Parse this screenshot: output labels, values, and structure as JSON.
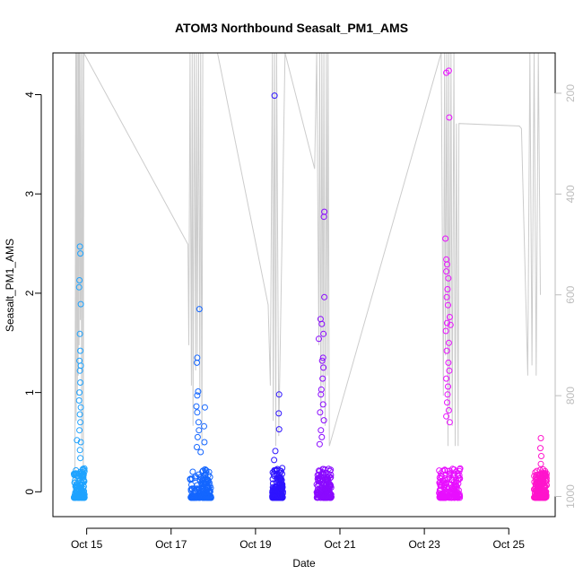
{
  "chart_data": {
    "type": "scatter",
    "title": "ATOM3 Northbound Seasalt_PM1_AMS",
    "xlabel": "Date",
    "ylabel": "Seasalt_PM1_AMS",
    "x_ticks": [
      "Oct 15",
      "Oct 17",
      "Oct 19",
      "Oct 21",
      "Oct 23",
      "Oct 25"
    ],
    "x_tick_days": [
      15,
      17,
      19,
      21,
      23,
      25
    ],
    "xlim_days": [
      14.2,
      26.1
    ],
    "y_ticks": [
      0,
      1,
      2,
      3,
      4
    ],
    "ylim": [
      -0.25,
      4.42
    ],
    "y_right_ticks": [
      200,
      400,
      600,
      800,
      1000
    ],
    "y_right_lim": [
      1040,
      120
    ],
    "y_right_reversed": true,
    "grid": false,
    "overlay_line_color": "#cccccc",
    "series": [
      {
        "color": "#1fa3ff",
        "day_range": [
          14.7,
          14.95
        ],
        "values": [
          [
            14.84,
            2.47
          ],
          [
            14.85,
            2.4
          ],
          [
            14.83,
            2.13
          ],
          [
            14.82,
            2.06
          ],
          [
            14.86,
            1.89
          ],
          [
            14.84,
            1.59
          ],
          [
            14.85,
            1.42
          ],
          [
            14.83,
            1.32
          ],
          [
            14.86,
            1.27
          ],
          [
            14.84,
            1.22
          ],
          [
            14.85,
            1.1
          ],
          [
            14.83,
            1.0
          ],
          [
            14.82,
            0.92
          ],
          [
            14.86,
            0.85
          ],
          [
            14.84,
            0.78
          ],
          [
            14.85,
            0.7
          ],
          [
            14.83,
            0.62
          ],
          [
            14.77,
            0.52
          ],
          [
            14.86,
            0.5
          ],
          [
            14.84,
            0.42
          ],
          [
            14.85,
            0.34
          ]
        ]
      },
      {
        "color": "#1466ff",
        "day_range": [
          17.45,
          17.95
        ],
        "values": [
          [
            17.67,
            1.84
          ],
          [
            17.62,
            1.35
          ],
          [
            17.61,
            1.3
          ],
          [
            17.64,
            1.01
          ],
          [
            17.62,
            0.97
          ],
          [
            17.6,
            0.86
          ],
          [
            17.8,
            0.85
          ],
          [
            17.62,
            0.8
          ],
          [
            17.65,
            0.7
          ],
          [
            17.78,
            0.66
          ],
          [
            17.66,
            0.62
          ],
          [
            17.63,
            0.55
          ],
          [
            17.79,
            0.5
          ],
          [
            17.61,
            0.45
          ],
          [
            17.7,
            0.4
          ]
        ]
      },
      {
        "color": "#2e14ff",
        "day_range": [
          19.4,
          19.65
        ],
        "values": [
          [
            19.45,
            3.99
          ],
          [
            19.56,
            0.98
          ],
          [
            19.55,
            0.79
          ],
          [
            19.56,
            0.63
          ],
          [
            19.47,
            0.41
          ],
          [
            19.44,
            0.32
          ],
          [
            19.5,
            0.18
          ]
        ]
      },
      {
        "color": "#8a0aff",
        "day_range": [
          20.45,
          20.8
        ],
        "values": [
          [
            20.63,
            2.82
          ],
          [
            20.62,
            2.77
          ],
          [
            20.63,
            1.96
          ],
          [
            20.54,
            1.74
          ],
          [
            20.57,
            1.69
          ],
          [
            20.61,
            1.59
          ],
          [
            20.5,
            1.54
          ],
          [
            20.58,
            1.32
          ],
          [
            20.6,
            1.35
          ],
          [
            20.61,
            1.25
          ],
          [
            20.59,
            1.14
          ],
          [
            20.56,
            1.03
          ],
          [
            20.55,
            0.98
          ],
          [
            20.6,
            0.88
          ],
          [
            20.53,
            0.8
          ],
          [
            20.62,
            0.72
          ],
          [
            20.55,
            0.62
          ],
          [
            20.57,
            0.55
          ],
          [
            20.52,
            0.48
          ]
        ]
      },
      {
        "color": "#e80fff",
        "day_range": [
          23.35,
          23.85
        ],
        "values": [
          [
            23.58,
            4.24
          ],
          [
            23.52,
            4.22
          ],
          [
            23.59,
            3.77
          ],
          [
            23.5,
            2.55
          ],
          [
            23.52,
            2.34
          ],
          [
            23.54,
            2.29
          ],
          [
            23.52,
            2.22
          ],
          [
            23.57,
            2.15
          ],
          [
            23.55,
            2.04
          ],
          [
            23.53,
            1.96
          ],
          [
            23.56,
            1.88
          ],
          [
            23.6,
            1.76
          ],
          [
            23.54,
            1.7
          ],
          [
            23.62,
            1.68
          ],
          [
            23.51,
            1.62
          ],
          [
            23.58,
            1.5
          ],
          [
            23.53,
            1.42
          ],
          [
            23.57,
            1.3
          ],
          [
            23.59,
            1.22
          ],
          [
            23.52,
            1.14
          ],
          [
            23.56,
            1.06
          ],
          [
            23.55,
            0.98
          ],
          [
            23.54,
            0.9
          ],
          [
            23.58,
            0.82
          ],
          [
            23.52,
            0.76
          ],
          [
            23.6,
            0.7
          ]
        ]
      },
      {
        "color": "#ff14cc",
        "day_range": [
          25.6,
          25.9
        ],
        "values": [
          [
            25.76,
            0.54
          ],
          [
            25.75,
            0.44
          ],
          [
            25.77,
            0.36
          ],
          [
            25.76,
            0.28
          ],
          [
            25.74,
            0.22
          ],
          [
            25.78,
            0.18
          ]
        ]
      }
    ],
    "altitude_line": [
      [
        14.72,
        1000
      ],
      [
        14.73,
        700
      ],
      [
        14.74,
        120
      ],
      [
        14.75,
        850
      ],
      [
        14.76,
        120
      ],
      [
        14.78,
        800
      ],
      [
        14.79,
        120
      ],
      [
        14.8,
        760
      ],
      [
        14.81,
        120
      ],
      [
        14.82,
        700
      ],
      [
        14.83,
        120
      ],
      [
        14.85,
        650
      ],
      [
        14.86,
        120
      ],
      [
        14.88,
        900
      ],
      [
        14.9,
        120
      ],
      [
        14.92,
        1000
      ],
      [
        14.93,
        120
      ],
      [
        17.4,
        500
      ],
      [
        17.42,
        700
      ],
      [
        17.45,
        120
      ],
      [
        17.48,
        780
      ],
      [
        17.5,
        120
      ],
      [
        17.52,
        860
      ],
      [
        17.55,
        120
      ],
      [
        17.58,
        750
      ],
      [
        17.6,
        120
      ],
      [
        17.62,
        720
      ],
      [
        17.65,
        120
      ],
      [
        17.68,
        800
      ],
      [
        17.7,
        120
      ],
      [
        17.73,
        900
      ],
      [
        17.75,
        120
      ],
      [
        17.8,
        120
      ],
      [
        18.1,
        120
      ],
      [
        19.3,
        620
      ],
      [
        19.35,
        780
      ],
      [
        19.4,
        120
      ],
      [
        19.42,
        850
      ],
      [
        19.45,
        120
      ],
      [
        19.48,
        900
      ],
      [
        19.5,
        120
      ],
      [
        19.55,
        880
      ],
      [
        19.7,
        120
      ],
      [
        20.4,
        350
      ],
      [
        20.45,
        120
      ],
      [
        20.5,
        700
      ],
      [
        20.52,
        120
      ],
      [
        20.55,
        850
      ],
      [
        20.57,
        120
      ],
      [
        20.6,
        780
      ],
      [
        20.62,
        120
      ],
      [
        20.65,
        860
      ],
      [
        20.68,
        120
      ],
      [
        20.7,
        760
      ],
      [
        20.72,
        120
      ],
      [
        20.75,
        900
      ],
      [
        23.4,
        120
      ],
      [
        23.45,
        800
      ],
      [
        23.48,
        120
      ],
      [
        23.5,
        720
      ],
      [
        23.53,
        120
      ],
      [
        23.56,
        900
      ],
      [
        23.58,
        120
      ],
      [
        23.6,
        830
      ],
      [
        23.63,
        120
      ],
      [
        23.66,
        860
      ],
      [
        23.7,
        120
      ],
      [
        23.73,
        900
      ],
      [
        23.76,
        260
      ],
      [
        23.8,
        900
      ],
      [
        23.82,
        260
      ],
      [
        25.25,
        265
      ],
      [
        25.3,
        270
      ],
      [
        25.45,
        760
      ],
      [
        25.5,
        120
      ],
      [
        25.55,
        740
      ],
      [
        25.6,
        120
      ],
      [
        25.65,
        760
      ],
      [
        25.7,
        120
      ],
      [
        25.75,
        600
      ]
    ]
  }
}
